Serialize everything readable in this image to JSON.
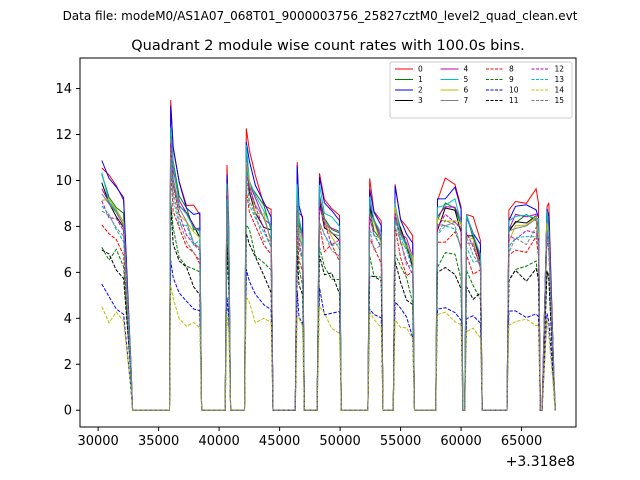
{
  "header": {
    "datafile": "Data file: modeM0/AS1A07_068T01_9000003756_25827cztM0_level2_quad_clean.evt",
    "title": "Quadrant 2 module wise count rates with 100.0s bins."
  },
  "chart_data": {
    "type": "line",
    "title": "Quadrant 2 module wise count rates with 100.0s bins.",
    "xlabel": "",
    "ylabel": "",
    "x_offset_label": "+3.318e8",
    "xlim": [
      28500,
      69500
    ],
    "ylim": [
      -0.73,
      15.33
    ],
    "x_ticks": [
      30000,
      35000,
      40000,
      45000,
      50000,
      55000,
      60000,
      65000
    ],
    "x_tick_labels": [
      "30000",
      "35000",
      "40000",
      "45000",
      "50000",
      "55000",
      "60000",
      "65000"
    ],
    "y_ticks": [
      0,
      2,
      4,
      6,
      8,
      10,
      12,
      14
    ],
    "y_tick_labels": [
      "0",
      "2",
      "4",
      "6",
      "8",
      "10",
      "12",
      "14"
    ],
    "legend_position": "top-right",
    "legend_columns": 4,
    "series": [
      {
        "name": "0",
        "color": "#ff0000",
        "dash": "solid",
        "level": 10.8
      },
      {
        "name": "1",
        "color": "#008000",
        "dash": "solid",
        "level": 10.0
      },
      {
        "name": "2",
        "color": "#0000ff",
        "dash": "solid",
        "level": 10.6
      },
      {
        "name": "3",
        "color": "#000000",
        "dash": "solid",
        "level": 9.6
      },
      {
        "name": "4",
        "color": "#bf00bf",
        "dash": "solid",
        "level": 9.8
      },
      {
        "name": "5",
        "color": "#00bfbf",
        "dash": "solid",
        "level": 10.0
      },
      {
        "name": "6",
        "color": "#bfbf00",
        "dash": "solid",
        "level": 9.5
      },
      {
        "name": "7",
        "color": "#808080",
        "dash": "solid",
        "level": 9.3
      },
      {
        "name": "8",
        "color": "#ff0000",
        "dash": "dashed",
        "level": 8.4
      },
      {
        "name": "9",
        "color": "#008000",
        "dash": "dashed",
        "level": 7.4
      },
      {
        "name": "10",
        "color": "#0000ff",
        "dash": "dashed",
        "level": 5.2
      },
      {
        "name": "11",
        "color": "#000000",
        "dash": "dashed",
        "level": 6.9
      },
      {
        "name": "12",
        "color": "#bf00bf",
        "dash": "dashed",
        "level": 9.2
      },
      {
        "name": "13",
        "color": "#00bfbf",
        "dash": "dashed",
        "level": 9.0
      },
      {
        "name": "14",
        "color": "#bfbf00",
        "dash": "dashed",
        "level": 4.5
      },
      {
        "name": "15",
        "color": "#808080",
        "dash": "dashed",
        "level": 8.8
      }
    ],
    "time_profile": {
      "x": [
        30300,
        30900,
        31500,
        32100,
        32700,
        32850,
        35900,
        36000,
        36200,
        36700,
        37300,
        37900,
        38400,
        38550,
        40500,
        40650,
        40800,
        40950,
        42100,
        42250,
        42500,
        43000,
        43700,
        44300,
        44450,
        46300,
        46450,
        46600,
        46900,
        47050,
        48100,
        48300,
        48700,
        49300,
        49950,
        50100,
        52300,
        52450,
        52800,
        53400,
        53550,
        54400,
        54550,
        55000,
        55500,
        56000,
        56150,
        57900,
        58050,
        58700,
        59500,
        60000,
        60150,
        60300,
        60450,
        61000,
        61600,
        61750,
        63800,
        63950,
        64500,
        65400,
        66200,
        66400,
        66550,
        66700,
        67100,
        67250,
        67700,
        67800
      ],
      "norm": [
        1.0,
        0.93,
        0.9,
        0.85,
        0.2,
        0.0,
        0.0,
        1.25,
        1.05,
        0.92,
        0.86,
        0.82,
        0.78,
        0.0,
        0.0,
        1.0,
        0.75,
        0.0,
        0.0,
        1.12,
        1.02,
        0.92,
        0.86,
        0.8,
        0.0,
        0.0,
        0.98,
        0.82,
        0.75,
        0.0,
        0.0,
        0.95,
        0.86,
        0.82,
        0.78,
        0.0,
        0.0,
        0.9,
        0.82,
        0.78,
        0.0,
        0.0,
        0.9,
        0.8,
        0.74,
        0.68,
        0.0,
        0.0,
        0.85,
        0.9,
        0.88,
        0.82,
        0.0,
        0.0,
        0.82,
        0.75,
        0.7,
        0.0,
        0.0,
        0.8,
        0.84,
        0.85,
        0.86,
        0.8,
        0.0,
        0.0,
        0.85,
        0.8,
        0.1,
        0.0
      ]
    }
  }
}
